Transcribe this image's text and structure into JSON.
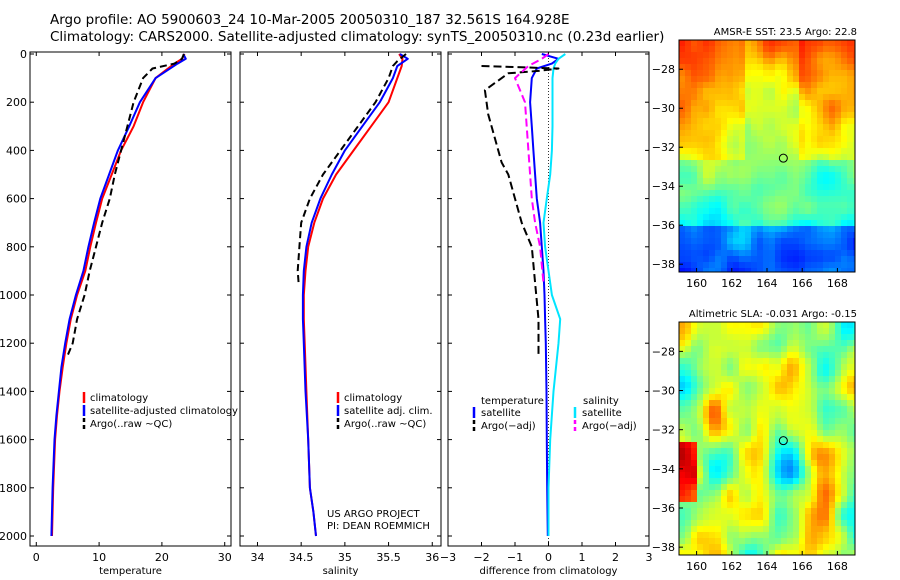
{
  "header": {
    "line1": "Argo profile: AO 5900603_24 10-Mar-2005 20050310_187 32.561S 164.928E",
    "line2": "Climatology: CARS2000. Satellite-adjusted climatology: synTS_20050310.nc (0.23d earlier)"
  },
  "colors": {
    "climatology": "#ff0000",
    "satellite": "#0000ff",
    "argo": "#000000",
    "sal_satellite": "#00e5ff",
    "sal_argo": "#ff00ff"
  },
  "chart_data": [
    {
      "id": "temperature",
      "type": "line",
      "xlabel": "temperature",
      "ylabel": "",
      "xlim": [
        -1,
        31
      ],
      "ylim": [
        0,
        2050
      ],
      "xticks": [
        0,
        10,
        20,
        30
      ],
      "xticklabels": [
        "0",
        "10",
        "20",
        "30"
      ],
      "yticks": [
        0,
        200,
        400,
        600,
        800,
        1000,
        1200,
        1400,
        1600,
        1800,
        2000
      ],
      "yticklabels": [
        "0",
        "200",
        "400",
        "600",
        "800",
        "1000",
        "1200",
        "1400",
        "1600",
        "1800",
        "2000"
      ],
      "legend": {
        "placement": "lower-right",
        "entries": [
          "climatology",
          "satellite-adjusted climatology",
          "Argo(..raw ~QC)"
        ]
      },
      "series": [
        {
          "name": "climatology",
          "color": "#ff0000",
          "dash": "",
          "x": [
            23.6,
            23.2,
            22,
            19,
            17,
            15.5,
            13.5,
            12,
            10.5,
            9.5,
            8.6,
            7.8,
            6.5,
            5.5,
            4.8,
            4.2,
            3.7,
            3.3,
            3,
            2.7,
            2.5
          ],
          "y": [
            0,
            20,
            40,
            100,
            200,
            300,
            400,
            500,
            600,
            700,
            800,
            900,
            1000,
            1100,
            1200,
            1300,
            1400,
            1500,
            1600,
            1800,
            2000
          ]
        },
        {
          "name": "satellite-adjusted climatology",
          "color": "#0000ff",
          "dash": "",
          "x": [
            23.4,
            23.8,
            22.5,
            19,
            16.5,
            14.8,
            13,
            11.6,
            10.2,
            9.2,
            8.3,
            7.5,
            6.3,
            5.3,
            4.6,
            4,
            3.6,
            3.2,
            2.9,
            2.6,
            2.4
          ],
          "y": [
            0,
            20,
            40,
            100,
            200,
            300,
            400,
            500,
            600,
            700,
            800,
            900,
            1000,
            1100,
            1200,
            1300,
            1400,
            1500,
            1600,
            1800,
            2000
          ]
        },
        {
          "name": "Argo(..raw ~QC)",
          "color": "#000000",
          "dash": "7,4",
          "x": [
            23.5,
            23.2,
            22,
            18.5,
            17,
            15.5,
            14.5,
            13.5,
            12.5,
            11.7,
            10.5,
            9.5,
            8.5,
            7.7,
            6.5,
            5.8,
            5
          ],
          "y": [
            0,
            20,
            40,
            60,
            100,
            200,
            300,
            400,
            500,
            600,
            700,
            800,
            900,
            1000,
            1100,
            1200,
            1250
          ]
        }
      ]
    },
    {
      "id": "salinity",
      "type": "line",
      "xlabel": "salinity",
      "ylabel": "",
      "xlim": [
        33.8,
        36.1
      ],
      "ylim": [
        0,
        2050
      ],
      "xticks": [
        34,
        34.5,
        35,
        35.5,
        36
      ],
      "xticklabels": [
        "34",
        "34.5",
        "35",
        "35.5",
        "36"
      ],
      "legend": {
        "placement": "lower-right",
        "entries": [
          "climatology",
          "satellite adj. clim.",
          "Argo(..raw ~QC)"
        ]
      },
      "annotation": [
        "US ARGO PROJECT",
        "PI: DEAN ROEMMICH"
      ],
      "series": [
        {
          "name": "climatology",
          "color": "#ff0000",
          "dash": "",
          "x": [
            35.62,
            35.66,
            35.65,
            35.6,
            35.5,
            35.3,
            35.1,
            34.9,
            34.75,
            34.65,
            34.58,
            34.55,
            34.53,
            34.53,
            34.54,
            34.56,
            34.58,
            34.6,
            34.64,
            34.67
          ],
          "y": [
            0,
            20,
            50,
            100,
            200,
            300,
            400,
            500,
            600,
            700,
            800,
            900,
            1000,
            1100,
            1200,
            1400,
            1600,
            1800,
            1900,
            2000
          ]
        },
        {
          "name": "satellite adj. clim.",
          "color": "#0000ff",
          "dash": "",
          "x": [
            35.63,
            35.72,
            35.6,
            35.55,
            35.4,
            35.2,
            35.0,
            34.85,
            34.72,
            34.62,
            34.56,
            34.53,
            34.52,
            34.52,
            34.53,
            34.55,
            34.58,
            34.6,
            34.64,
            34.67
          ],
          "y": [
            0,
            20,
            50,
            100,
            200,
            300,
            400,
            500,
            600,
            700,
            800,
            900,
            1000,
            1100,
            1200,
            1400,
            1600,
            1800,
            1900,
            2000
          ]
        },
        {
          "name": "Argo(..raw ~QC)",
          "color": "#000000",
          "dash": "7,4",
          "x": [
            35.7,
            35.6,
            35.55,
            35.5,
            35.35,
            35.15,
            34.95,
            34.75,
            34.6,
            34.5,
            34.48,
            34.46,
            34.47
          ],
          "y": [
            0,
            30,
            50,
            100,
            200,
            300,
            400,
            500,
            600,
            700,
            800,
            900,
            950
          ]
        }
      ]
    },
    {
      "id": "difference",
      "type": "line",
      "xlabel": "difference from climatology",
      "ylabel": "",
      "xlim": [
        -3,
        3
      ],
      "ylim": [
        0,
        2050
      ],
      "xticks": [
        -3,
        -2,
        -1,
        0,
        1,
        2,
        3
      ],
      "xticklabels": [
        "−3",
        "−2",
        "−1",
        "0",
        "1",
        "2",
        "3"
      ],
      "legend_left": {
        "title": "temperature",
        "entries": [
          "satellite",
          "Argo(−adj)"
        ]
      },
      "legend_right": {
        "title": "salinity",
        "entries": [
          "satellite",
          "Argo(−adj)"
        ]
      },
      "series": [
        {
          "name": "temperature satellite",
          "color": "#0000ff",
          "dash": "",
          "x": [
            -0.2,
            0.3,
            0.1,
            -0.35,
            -0.5,
            -0.55,
            -0.5,
            -0.45,
            -0.4,
            -0.35,
            -0.25,
            -0.2,
            -0.15,
            -0.12,
            -0.1,
            -0.08,
            -0.06,
            -0.05,
            -0.04,
            -0.03,
            -0.02
          ],
          "y": [
            0,
            20,
            40,
            60,
            100,
            200,
            300,
            400,
            500,
            600,
            700,
            800,
            900,
            1000,
            1100,
            1200,
            1400,
            1600,
            1800,
            1900,
            2000
          ]
        },
        {
          "name": "salinity satellite",
          "color": "#00e5ff",
          "dash": "",
          "x": [
            0.5,
            0.3,
            0.2,
            0.15,
            0.12,
            0.12,
            0.12,
            0.1,
            0.05,
            -0.05,
            -0.15,
            -0.1,
            0,
            0.1,
            0.35,
            0.3,
            0.15,
            0.05,
            0.0,
            0.0,
            0.0
          ],
          "y": [
            0,
            20,
            40,
            60,
            100,
            200,
            300,
            400,
            500,
            600,
            700,
            800,
            900,
            1000,
            1100,
            1200,
            1400,
            1600,
            1800,
            1900,
            2000
          ]
        },
        {
          "name": "temperature Argo(−adj)",
          "color": "#000000",
          "dash": "8,4",
          "x": [
            -2.0,
            0.3,
            -0.3,
            -1.2,
            -1.9,
            -1.8,
            -1.6,
            -1.4,
            -1.2,
            -1.0,
            -0.8,
            -0.5,
            -0.4,
            -0.3,
            -0.3
          ],
          "y": [
            50,
            60,
            70,
            80,
            150,
            250,
            350,
            450,
            500,
            600,
            700,
            800,
            950,
            1100,
            1250
          ]
        },
        {
          "name": "salinity Argo(−adj)",
          "color": "#ff00ff",
          "dash": "8,4",
          "x": [
            0.0,
            -0.2,
            -0.6,
            -1.0,
            -0.7,
            -0.6,
            -0.5,
            -0.4,
            -0.25,
            -0.15
          ],
          "y": [
            0,
            20,
            50,
            100,
            200,
            400,
            600,
            700,
            800,
            950
          ]
        }
      ]
    },
    {
      "id": "sst-map",
      "type": "heatmap",
      "title": "AMSR-E SST: 23.5 Argo: 22.8",
      "xlim": [
        159,
        169
      ],
      "ylim": [
        -38.4,
        -26.5
      ],
      "xticks": [
        160,
        162,
        164,
        166,
        168
      ],
      "xticklabels": [
        "160",
        "162",
        "164",
        "166",
        "168"
      ],
      "yticks": [
        -28,
        -30,
        -32,
        -34,
        -36,
        -38
      ],
      "yticklabels": [
        "−28",
        "−30",
        "−32",
        "−34",
        "−36",
        "−38"
      ],
      "float_lon": 164.928,
      "float_lat": -32.561
    },
    {
      "id": "sla-map",
      "type": "heatmap",
      "title": "Altimetric SLA: -0.031 Argo: -0.15",
      "xlim": [
        159,
        169
      ],
      "ylim": [
        -38.4,
        -26.5
      ],
      "xticks": [
        160,
        162,
        164,
        166,
        168
      ],
      "xticklabels": [
        "160",
        "162",
        "164",
        "166",
        "168"
      ],
      "yticks": [
        -28,
        -30,
        -32,
        -34,
        -36,
        -38
      ],
      "yticklabels": [
        "−28",
        "−30",
        "−32",
        "−34",
        "−36",
        "−38"
      ],
      "float_lon": 164.928,
      "float_lat": -32.561
    }
  ]
}
